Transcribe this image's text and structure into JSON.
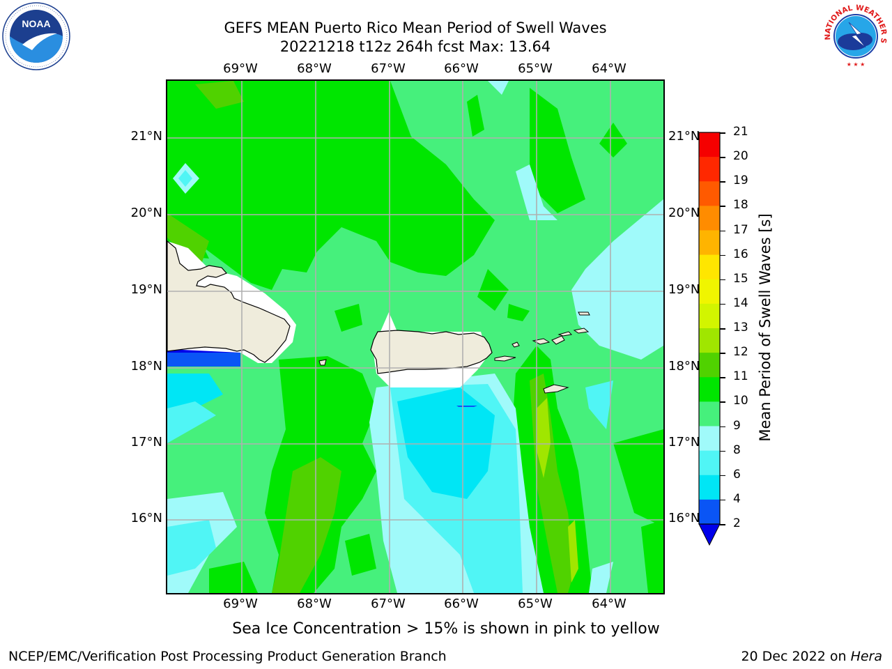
{
  "header": {
    "title_line1": "GEFS MEAN Puerto Rico Mean Period of Swell Waves",
    "title_line2": "20221218 t12z 264h fcst   Max: 13.64"
  },
  "logos": {
    "left": {
      "icon": "noaa-logo-icon",
      "text": "NOAA"
    },
    "right": {
      "icon": "nws-logo-icon",
      "text": "NATIONAL WEATHER SERVICE"
    }
  },
  "map": {
    "lon_labels": [
      "69°W",
      "68°W",
      "67°W",
      "66°W",
      "65°W",
      "64°W"
    ],
    "lat_labels": [
      "21°N",
      "20°N",
      "19°N",
      "18°N",
      "17°N",
      "16°N"
    ],
    "land_color": "#efecdc",
    "ocean_base_color": "#46f07c"
  },
  "colorbar": {
    "title": "Mean Period of Swell Waves [s]",
    "levels": [
      "2",
      "4",
      "6",
      "8",
      "9",
      "10",
      "11",
      "12",
      "13",
      "14",
      "15",
      "16",
      "17",
      "18",
      "19",
      "20",
      "21"
    ],
    "colors": [
      "#0a55f5",
      "#00e6f5",
      "#50f5f5",
      "#a0fafa",
      "#46f07c",
      "#00e600",
      "#50d200",
      "#a0e600",
      "#d2f500",
      "#f0f500",
      "#ffe600",
      "#ffb400",
      "#ff8c00",
      "#ff5a00",
      "#ff2800",
      "#f50000"
    ],
    "under_color": "#0000ea"
  },
  "caption": "Sea Ice Concentration > 15% is shown in pink to yellow",
  "footer": {
    "left": "NCEP/EMC/Verification Post Processing Product Generation Branch",
    "right_prefix": "20 Dec 2022 on ",
    "right_machine": "Hera"
  }
}
